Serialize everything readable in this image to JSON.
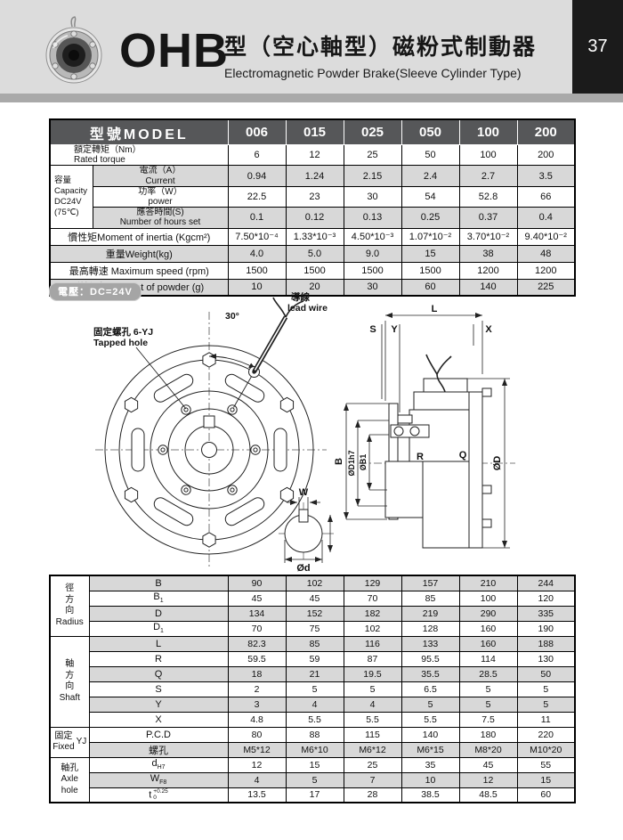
{
  "page": {
    "number": "37"
  },
  "header": {
    "product_code": "OHB",
    "title_zh": "型（空心軸型）磁粉式制動器",
    "title_en": "Electromagnetic Powder Brake(Sleeve Cylinder Type)"
  },
  "voltage_badge": {
    "text": "電壓：DC=24V"
  },
  "colors": {
    "header_band": "#dcdcdc",
    "divider_bar": "#a9a9a9",
    "page_num_box": "#1b1b1b",
    "table_header_bg": "#565759",
    "shaded_row": "#d8d8d8"
  },
  "spec_table": {
    "model_header": {
      "label": "型號MODEL",
      "models": [
        "006",
        "015",
        "025",
        "050",
        "100",
        "200"
      ]
    },
    "capacity_group": {
      "lines": [
        "容量",
        "Capacity",
        "DC24V",
        "(75℃)"
      ]
    },
    "rows": [
      {
        "span": "full",
        "zh": "額定轉矩（Nm）",
        "en": "Rated torque",
        "shaded": false,
        "values": [
          "6",
          "12",
          "25",
          "50",
          "100",
          "200"
        ]
      },
      {
        "span": "sub",
        "zh": "電流（A）",
        "en": "Current",
        "shaded": true,
        "values": [
          "0.94",
          "1.24",
          "2.15",
          "2.4",
          "2.7",
          "3.5"
        ]
      },
      {
        "span": "sub",
        "zh": "功率（W）",
        "en": "power",
        "shaded": false,
        "values": [
          "22.5",
          "23",
          "30",
          "54",
          "52.8",
          "66"
        ]
      },
      {
        "span": "sub",
        "zh": "應答時間(S)",
        "en": "Number of hours set",
        "shaded": true,
        "values": [
          "0.1",
          "0.12",
          "0.13",
          "0.25",
          "0.37",
          "0.4"
        ]
      },
      {
        "span": "full",
        "zh": "慣性矩Moment of inertia (Kgcm²)",
        "en": "",
        "shaded": false,
        "values": [
          "7.50*10⁻⁴",
          "1.33*10⁻³",
          "4.50*10⁻³",
          "1.07*10⁻²",
          "3.70*10⁻²",
          "9.40*10⁻²"
        ]
      },
      {
        "span": "full",
        "zh": "重量Weight(kg)",
        "en": "",
        "shaded": true,
        "values": [
          "4.0",
          "5.0",
          "9.0",
          "15",
          "38",
          "48"
        ]
      },
      {
        "span": "full",
        "zh": "最高轉速 Maximum speed (rpm)",
        "en": "",
        "shaded": false,
        "values": [
          "1500",
          "1500",
          "1500",
          "1500",
          "1200",
          "1200"
        ]
      },
      {
        "span": "full",
        "zh": "磁粉重量Weight of powder (g)",
        "en": "",
        "shaded": true,
        "values": [
          "10",
          "20",
          "30",
          "60",
          "140",
          "225"
        ]
      }
    ]
  },
  "drawing": {
    "labels": {
      "angle": "30°",
      "lead_wire_zh": "導線",
      "lead_wire_en": "lead wire",
      "tapped_zh": "固定螺孔 6-YJ",
      "tapped_en": "Tapped hole",
      "L": "L",
      "S": "S",
      "Y": "Y",
      "X": "X",
      "B": "B",
      "d1h7": "ØD1h7",
      "b1": "ØB1",
      "dd": "ØD",
      "R": "R",
      "Q": "Q",
      "W": "W",
      "d_small": "Ød"
    }
  },
  "dim_table": {
    "rows": [
      {
        "group": {
          "lines": [
            "徑",
            "方",
            "向",
            "Radius"
          ],
          "span": 4
        },
        "base": "B",
        "shaded": true,
        "values": [
          "90",
          "102",
          "129",
          "157",
          "210",
          "244"
        ]
      },
      {
        "base": "B",
        "sub": "1",
        "shaded": false,
        "values": [
          "45",
          "45",
          "70",
          "85",
          "100",
          "120"
        ]
      },
      {
        "base": "D",
        "shaded": true,
        "values": [
          "134",
          "152",
          "182",
          "219",
          "290",
          "335"
        ]
      },
      {
        "base": "D",
        "sub": "1",
        "shaded": false,
        "values": [
          "70",
          "75",
          "102",
          "128",
          "160",
          "190"
        ]
      },
      {
        "group": {
          "lines": [
            "軸",
            "方",
            "向",
            "Shaft"
          ],
          "span": 6
        },
        "base": "L",
        "shaded": true,
        "values": [
          "82.3",
          "85",
          "116",
          "133",
          "160",
          "188"
        ]
      },
      {
        "base": "R",
        "shaded": false,
        "values": [
          "59.5",
          "59",
          "87",
          "95.5",
          "114",
          "130"
        ]
      },
      {
        "base": "Q",
        "shaded": true,
        "values": [
          "18",
          "21",
          "19.5",
          "35.5",
          "28.5",
          "50"
        ]
      },
      {
        "base": "S",
        "shaded": false,
        "values": [
          "2",
          "5",
          "5",
          "6.5",
          "5",
          "5"
        ]
      },
      {
        "base": "Y",
        "shaded": true,
        "values": [
          "3",
          "4",
          "4",
          "5",
          "5",
          "5"
        ]
      },
      {
        "base": "X",
        "shaded": false,
        "values": [
          "4.8",
          "5.5",
          "5.5",
          "5.5",
          "7.5",
          "11"
        ]
      },
      {
        "group": {
          "lines": [
            "固定",
            "Fixed"
          ],
          "side": "YJ",
          "span": 2
        },
        "base": "P.C.D",
        "shaded": false,
        "values": [
          "80",
          "88",
          "115",
          "140",
          "180",
          "220"
        ]
      },
      {
        "base": "螺孔",
        "shaded": true,
        "values": [
          "M5*12",
          "M6*10",
          "M6*12",
          "M6*15",
          "M8*20",
          "M10*20"
        ]
      },
      {
        "group": {
          "lines": [
            "軸孔",
            "Axle",
            "hole"
          ],
          "span": 3
        },
        "base": "d",
        "sub": "H7",
        "shaded": false,
        "values": [
          "12",
          "15",
          "25",
          "35",
          "45",
          "55"
        ]
      },
      {
        "base": "W",
        "sub": "F8",
        "shaded": true,
        "values": [
          "4",
          "5",
          "7",
          "10",
          "12",
          "15"
        ]
      },
      {
        "base": "t",
        "tol_sup": "+0.25",
        "tol_sub": "0",
        "shaded": false,
        "values": [
          "13.5",
          "17",
          "28",
          "38.5",
          "48.5",
          "60"
        ]
      }
    ]
  }
}
